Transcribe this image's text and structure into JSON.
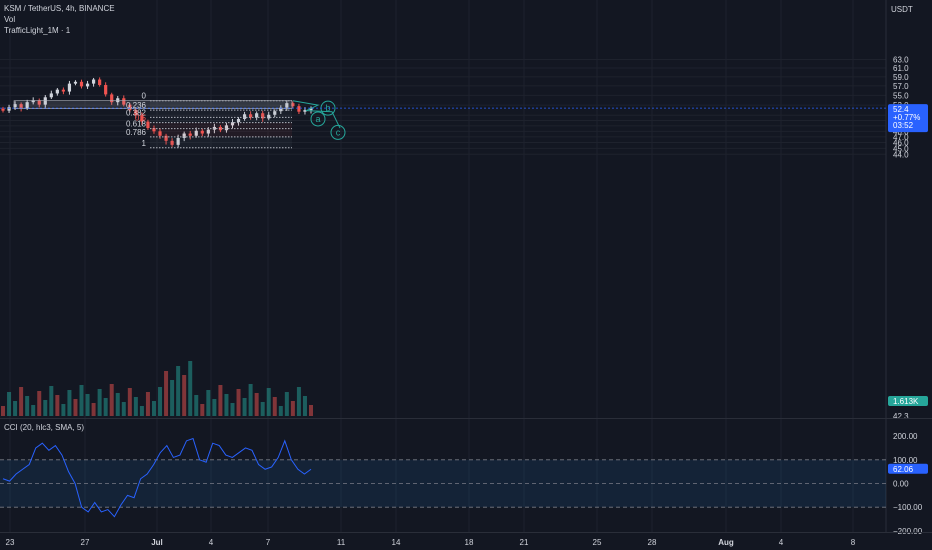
{
  "header": {
    "symbol_line": "KSM / TetherUS, 4h, BINANCE",
    "vol_label": "Vol",
    "indicator_label": "TrafficLight_1M · 1",
    "currency": "USDT"
  },
  "cci_panel": {
    "label": "CCI (20, hlc3, SMA, 5)"
  },
  "colors": {
    "up": "#26a69a",
    "down": "#ef5350",
    "candle_up_body": "#d1d4dc",
    "candle_down_body": "#ef5350",
    "cci_line": "#2962ff",
    "wave": "#26a69a",
    "price_tag": "#2962ff"
  },
  "chart_data": [
    {
      "type": "candlestick",
      "x_ticks": [
        "23",
        "27",
        "Jul",
        "4",
        "7",
        "11",
        "14",
        "18",
        "21",
        "25",
        "28",
        "Aug",
        "4",
        "8"
      ],
      "y_ticks": [
        63.0,
        61.0,
        59.0,
        57.0,
        55.0,
        53.0,
        51.0,
        50.0,
        49.0,
        48.0,
        47.0,
        46.0,
        45.0,
        44.0
      ],
      "y_ticks_partial": [
        "42.3"
      ],
      "y_scale": "log",
      "ylim": [
        42.0,
        64.8
      ],
      "last_price": {
        "price": "52.4",
        "change": "+0.77%",
        "countdown": "03:52"
      },
      "volume_tag": "1.613K",
      "fibonacci": [
        {
          "level": "0",
          "price": 53.9
        },
        {
          "level": "0.236",
          "price": 52.0
        },
        {
          "level": "0.382",
          "price": 50.6
        },
        {
          "level": "0.5",
          "price": 49.6
        },
        {
          "level": "0.618",
          "price": 48.5
        },
        {
          "level": "0.786",
          "price": 47.0
        },
        {
          "level": "1",
          "price": 45.1
        }
      ],
      "elliott_wave_labels": [
        "a",
        "b",
        "c"
      ]
    },
    {
      "type": "line",
      "name": "CCI",
      "value_tag": "62.06",
      "y_ticks": [
        "200.00",
        "100.00",
        "0.00",
        "−100.00",
        "−200.00"
      ],
      "band": [
        -100,
        100
      ]
    }
  ]
}
